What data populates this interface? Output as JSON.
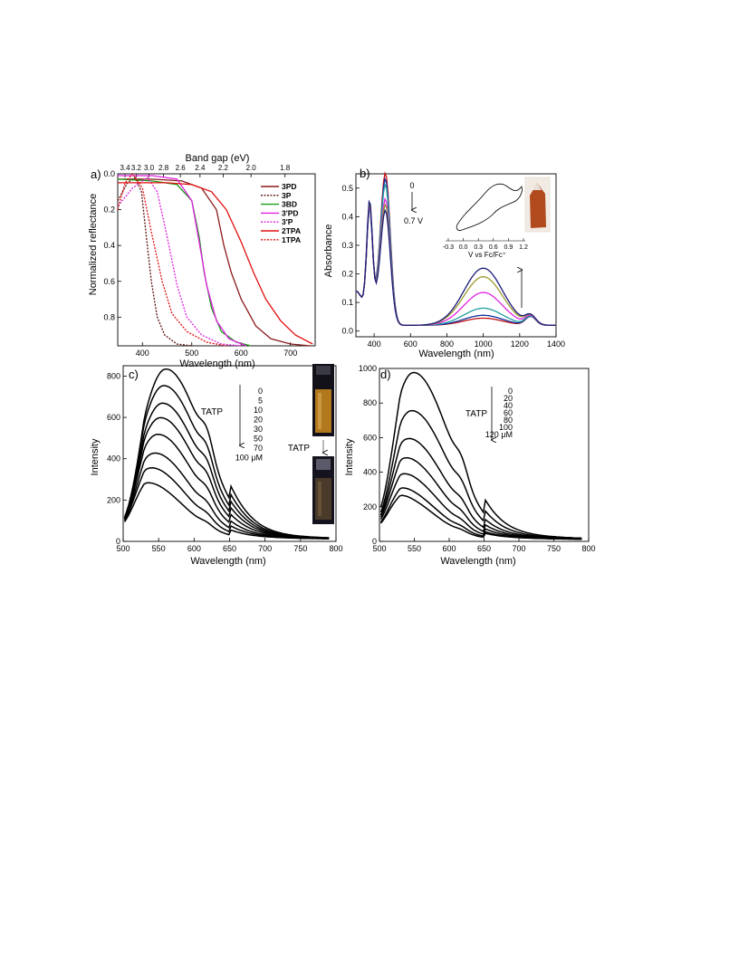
{
  "chart_data": [
    {
      "panel": "a)",
      "type": "line",
      "xlabel": "Wavelength (nm)",
      "ylabel": "Normalized reflectance",
      "top_xlabel": "Band gap (eV)",
      "xlim": [
        350,
        750
      ],
      "ylim": [
        0.0,
        0.96
      ],
      "y_inverted": true,
      "x_ticks": [
        400,
        500,
        600,
        700
      ],
      "y_ticks": [
        0.0,
        0.2,
        0.4,
        0.6,
        0.8
      ],
      "y_tick_labels": [
        "0.0",
        "0.2",
        "0.4",
        "0.6",
        "0.8"
      ],
      "top_ticks": [
        3.4,
        3.2,
        3.0,
        2.8,
        2.6,
        2.4,
        2.2,
        2.0,
        1.8
      ],
      "top_tick_labels": [
        "3.4",
        "3.2",
        "3.0",
        "2.8",
        "2.6",
        "2.4",
        "2.2",
        "2.0",
        "1.8"
      ],
      "series": [
        {
          "name": "3PD",
          "color": "#8b1a1a",
          "dash": false,
          "points": [
            [
              350,
              0.03
            ],
            [
              420,
              0.03
            ],
            [
              480,
              0.04
            ],
            [
              520,
              0.08
            ],
            [
              550,
              0.2
            ],
            [
              565,
              0.4
            ],
            [
              580,
              0.55
            ],
            [
              600,
              0.7
            ],
            [
              630,
              0.85
            ],
            [
              660,
              0.92
            ],
            [
              700,
              0.95
            ],
            [
              740,
              0.96
            ]
          ]
        },
        {
          "name": "3P",
          "color": "#5a1010",
          "dash": true,
          "points": [
            [
              350,
              0.15
            ],
            [
              370,
              0.05
            ],
            [
              385,
              0.02
            ],
            [
              398,
              0.1
            ],
            [
              408,
              0.35
            ],
            [
              418,
              0.6
            ],
            [
              430,
              0.8
            ],
            [
              445,
              0.9
            ],
            [
              470,
              0.95
            ],
            [
              500,
              0.96
            ]
          ]
        },
        {
          "name": "3BD",
          "color": "#1a9a1a",
          "dash": false,
          "points": [
            [
              350,
              0.03
            ],
            [
              420,
              0.04
            ],
            [
              470,
              0.06
            ],
            [
              500,
              0.15
            ],
            [
              515,
              0.35
            ],
            [
              525,
              0.55
            ],
            [
              540,
              0.75
            ],
            [
              560,
              0.88
            ],
            [
              590,
              0.94
            ],
            [
              620,
              0.96
            ]
          ]
        },
        {
          "name": "3'PD",
          "color": "#e020e0",
          "dash": false,
          "points": [
            [
              350,
              0.01
            ],
            [
              420,
              0.01
            ],
            [
              470,
              0.03
            ],
            [
              500,
              0.15
            ],
            [
              515,
              0.38
            ],
            [
              530,
              0.62
            ],
            [
              550,
              0.82
            ],
            [
              575,
              0.92
            ],
            [
              610,
              0.96
            ]
          ]
        },
        {
          "name": "3'P",
          "color": "#e020e0",
          "dash": true,
          "points": [
            [
              350,
              0.18
            ],
            [
              380,
              0.08
            ],
            [
              410,
              0.02
            ],
            [
              430,
              0.1
            ],
            [
              450,
              0.35
            ],
            [
              470,
              0.62
            ],
            [
              490,
              0.8
            ],
            [
              520,
              0.9
            ],
            [
              560,
              0.95
            ],
            [
              600,
              0.96
            ]
          ]
        },
        {
          "name": "2TPA",
          "color": "#e01010",
          "dash": false,
          "points": [
            [
              350,
              0.05
            ],
            [
              450,
              0.05
            ],
            [
              500,
              0.06
            ],
            [
              540,
              0.1
            ],
            [
              570,
              0.2
            ],
            [
              600,
              0.38
            ],
            [
              625,
              0.55
            ],
            [
              650,
              0.7
            ],
            [
              680,
              0.82
            ],
            [
              710,
              0.9
            ],
            [
              745,
              0.95
            ]
          ]
        },
        {
          "name": "1TPA",
          "color": "#e01010",
          "dash": true,
          "points": [
            [
              350,
              0.2
            ],
            [
              365,
              0.05
            ],
            [
              380,
              0.0
            ],
            [
              400,
              0.08
            ],
            [
              420,
              0.35
            ],
            [
              440,
              0.6
            ],
            [
              460,
              0.78
            ],
            [
              490,
              0.88
            ],
            [
              530,
              0.94
            ],
            [
              570,
              0.96
            ]
          ]
        }
      ]
    },
    {
      "panel": "b)",
      "type": "line",
      "xlabel": "Wavelength (nm)",
      "ylabel": "Absorbance",
      "xlim": [
        300,
        1400
      ],
      "ylim": [
        -0.02,
        0.55
      ],
      "x_ticks": [
        400,
        600,
        800,
        1000,
        1200,
        1400
      ],
      "y_ticks": [
        0.0,
        0.1,
        0.2,
        0.3,
        0.4,
        0.5
      ],
      "y_tick_labels": [
        "0.0",
        "0.1",
        "0.2",
        "0.3",
        "0.4",
        "0.5"
      ],
      "annotation_top": "0",
      "annotation_bottom": "0.7 V",
      "inset_xlabel": "V vs Fc/Fc⁺",
      "inset_ticks": [
        "-0.3",
        "0.0",
        "0.3",
        "0.6",
        "0.9",
        "1.2"
      ],
      "series": [
        {
          "color": "#c01010",
          "peak460": 0.53,
          "peak380": 0.38,
          "nir": 0.025
        },
        {
          "color": "#1030a0",
          "peak460": 0.51,
          "peak380": 0.37,
          "nir": 0.035
        },
        {
          "color": "#20a0a0",
          "peak460": 0.49,
          "peak380": 0.37,
          "nir": 0.06
        },
        {
          "color": "#e020e0",
          "peak460": 0.44,
          "peak380": 0.38,
          "nir": 0.115
        },
        {
          "color": "#9a9a30",
          "peak460": 0.42,
          "peak380": 0.39,
          "nir": 0.17
        },
        {
          "color": "#1a1a7a",
          "peak460": 0.4,
          "peak380": 0.4,
          "nir": 0.2
        }
      ]
    },
    {
      "panel": "c)",
      "type": "line",
      "xlabel": "Wavelength (nm)",
      "ylabel": "Intensity",
      "xlim": [
        500,
        800
      ],
      "ylim": [
        0,
        850
      ],
      "x_ticks": [
        500,
        550,
        600,
        650,
        700,
        750,
        800
      ],
      "y_ticks": [
        0,
        200,
        400,
        600,
        800
      ],
      "legend_title": "TATP",
      "legend_entries": [
        "0",
        "5",
        "10",
        "20",
        "30",
        "50",
        "70",
        "100 μM"
      ],
      "vial_label": "TATP",
      "peaks": [
        825,
        745,
        660,
        590,
        510,
        420,
        350,
        280
      ],
      "peak_x": [
        560,
        557,
        555,
        552,
        548,
        543,
        537,
        530
      ]
    },
    {
      "panel": "d)",
      "type": "line",
      "xlabel": "Wavelength (nm)",
      "ylabel": "Intensity",
      "xlim": [
        500,
        800
      ],
      "ylim": [
        0,
        1000
      ],
      "x_ticks": [
        500,
        550,
        600,
        650,
        700,
        750,
        800
      ],
      "y_ticks": [
        0,
        200,
        400,
        600,
        800,
        1000
      ],
      "legend_title": "TATP",
      "legend_entries": [
        "0",
        "20",
        "40",
        "60",
        "80",
        "100",
        "120 μM"
      ],
      "peaks": [
        970,
        750,
        590,
        480,
        390,
        310,
        270
      ],
      "peak_x": [
        548,
        545,
        540,
        535,
        530,
        525,
        520
      ]
    }
  ]
}
